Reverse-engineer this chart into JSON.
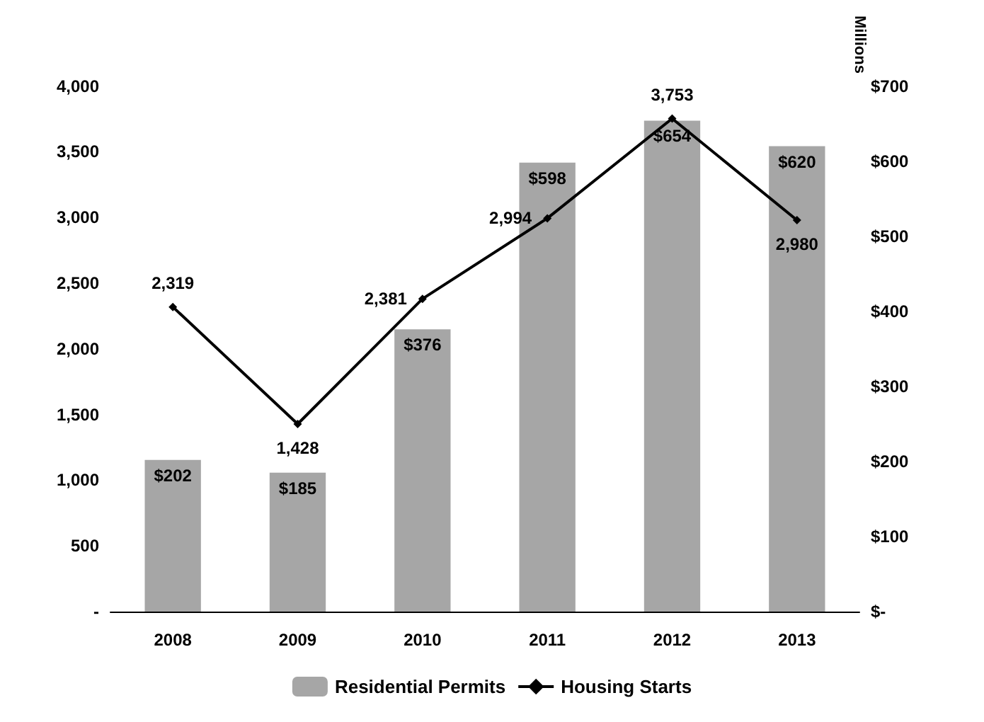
{
  "chart_data": {
    "type": "bar",
    "categories": [
      "2008",
      "2009",
      "2010",
      "2011",
      "2012",
      "2013"
    ],
    "y2label": "Millions",
    "series": [
      {
        "name": "Residential Permits",
        "axis": "y2",
        "color": "#a6a6a6",
        "values": [
          202,
          185,
          376,
          598,
          654,
          620
        ],
        "value_labels": [
          "$202",
          "$185",
          "$376",
          "$598",
          "$654",
          "$620"
        ]
      },
      {
        "name": "Housing Starts",
        "type": "line",
        "color": "#000000",
        "marker": "diamond",
        "values": [
          2319,
          1428,
          2381,
          2994,
          3753,
          2980
        ],
        "value_labels": [
          "2,319",
          "1,428",
          "2,381",
          "2,994",
          "3,753",
          "2,980"
        ]
      }
    ],
    "ylim": [
      0,
      4000
    ],
    "yticks": [
      {
        "value": 0,
        "label": "-"
      },
      {
        "value": 500,
        "label": "500"
      },
      {
        "value": 1000,
        "label": "1,000"
      },
      {
        "value": 1500,
        "label": "1,500"
      },
      {
        "value": 2000,
        "label": "2,000"
      },
      {
        "value": 2500,
        "label": "2,500"
      },
      {
        "value": 3000,
        "label": "3,000"
      },
      {
        "value": 3500,
        "label": "3,500"
      },
      {
        "value": 4000,
        "label": "4,000"
      }
    ],
    "y2lim": [
      0,
      700
    ],
    "y2ticks": [
      {
        "value": 0,
        "label": "$-"
      },
      {
        "value": 100,
        "label": "$100"
      },
      {
        "value": 200,
        "label": "$200"
      },
      {
        "value": 300,
        "label": "$300"
      },
      {
        "value": 400,
        "label": "$400"
      },
      {
        "value": 500,
        "label": "$500"
      },
      {
        "value": 600,
        "label": "$600"
      },
      {
        "value": 700,
        "label": "$700"
      }
    ],
    "legend": "bottom",
    "grid": false
  }
}
